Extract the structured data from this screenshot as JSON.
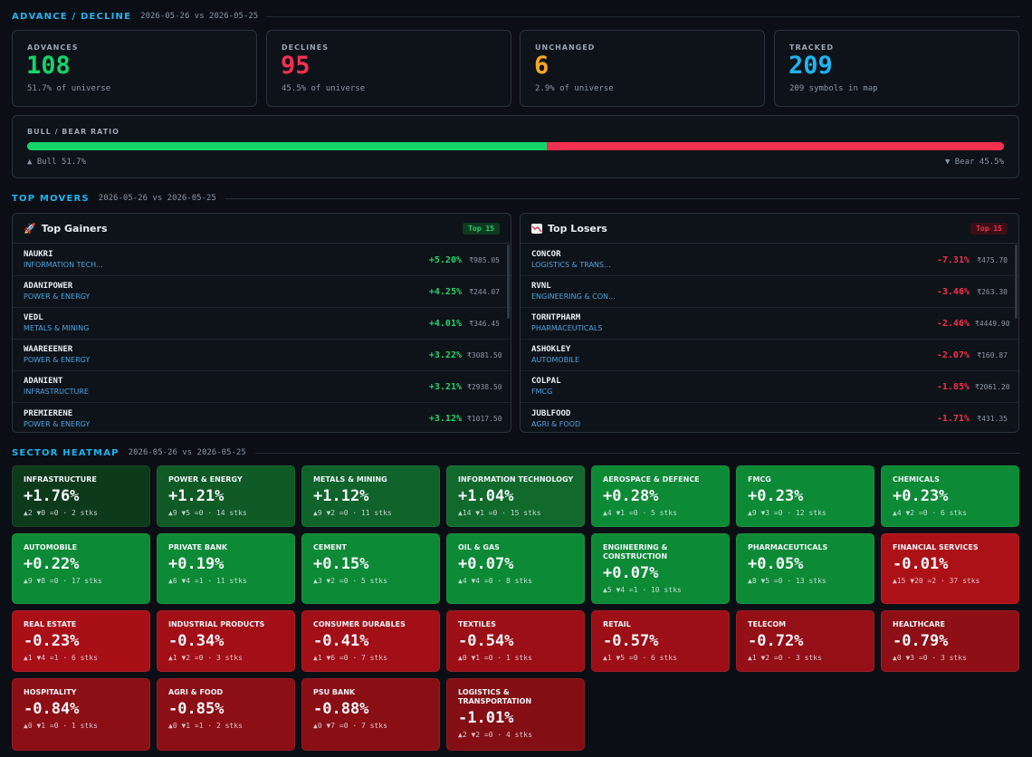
{
  "advance_decline": {
    "title": "ADVANCE / DECLINE",
    "dates": "2026-05-26 vs 2026-05-25",
    "stats": [
      {
        "label": "ADVANCES",
        "value": "108",
        "sub": "51.7% of universe",
        "color": "#14d46a"
      },
      {
        "label": "DECLINES",
        "value": "95",
        "sub": "45.5% of universe",
        "color": "#f4304f"
      },
      {
        "label": "UNCHANGED",
        "value": "6",
        "sub": "2.9% of universe",
        "color": "#f5a623"
      },
      {
        "label": "TRACKED",
        "value": "209",
        "sub": "209 symbols in map",
        "color": "#1fb4f0"
      }
    ],
    "ratio": {
      "label": "BULL / BEAR RATIO",
      "bull_pct": 51.7,
      "bear_pct": 45.5,
      "bull_label": "▲ Bull 51.7%",
      "bear_label": "▼ Bear 45.5%"
    }
  },
  "top_movers": {
    "title": "TOP MOVERS",
    "dates": "2026-05-26 vs 2026-05-25",
    "gainers": {
      "icon": "rocket-icon",
      "title": "Top Gainers",
      "badge": "Top 15",
      "rows": [
        {
          "symbol": "NAUKRI",
          "sector": "INFORMATION TECH...",
          "change": "+5.20%",
          "price": "₹985.05"
        },
        {
          "symbol": "ADANIPOWER",
          "sector": "POWER & ENERGY",
          "change": "+4.25%",
          "price": "₹244.07"
        },
        {
          "symbol": "VEDL",
          "sector": "METALS & MINING",
          "change": "+4.01%",
          "price": "₹346.45"
        },
        {
          "symbol": "WAAREEENER",
          "sector": "POWER & ENERGY",
          "change": "+3.22%",
          "price": "₹3081.50"
        },
        {
          "symbol": "ADANIENT",
          "sector": "INFRASTRUCTURE",
          "change": "+3.21%",
          "price": "₹2938.50"
        },
        {
          "symbol": "PREMIERENE",
          "sector": "POWER & ENERGY",
          "change": "+3.12%",
          "price": "₹1017.50"
        }
      ]
    },
    "losers": {
      "icon": "chart-down-icon",
      "title": "Top Losers",
      "badge": "Top 15",
      "rows": [
        {
          "symbol": "CONCOR",
          "sector": "LOGISTICS & TRANS...",
          "change": "-7.31%",
          "price": "₹475.70"
        },
        {
          "symbol": "RVNL",
          "sector": "ENGINEERING & CON...",
          "change": "-3.46%",
          "price": "₹263.30"
        },
        {
          "symbol": "TORNTPHARM",
          "sector": "PHARMACEUTICALS",
          "change": "-2.46%",
          "price": "₹4449.90"
        },
        {
          "symbol": "ASHOKLEY",
          "sector": "AUTOMOBILE",
          "change": "-2.07%",
          "price": "₹160.87"
        },
        {
          "symbol": "COLPAL",
          "sector": "FMCG",
          "change": "-1.85%",
          "price": "₹2061.20"
        },
        {
          "symbol": "JUBLFOOD",
          "sector": "AGRI & FOOD",
          "change": "-1.71%",
          "price": "₹431.35"
        }
      ]
    }
  },
  "heatmap": {
    "title": "SECTOR HEATMAP",
    "dates": "2026-05-26 vs 2026-05-25",
    "tiles": [
      {
        "name": "INFRASTRUCTURE",
        "pct": "+1.76%",
        "meta": "▲2 ▼0 =0 · 2 stks",
        "color": "#0e3a1c",
        "lines": 1
      },
      {
        "name": "POWER & ENERGY",
        "pct": "+1.21%",
        "meta": "▲9 ▼5 =0 · 14 stks",
        "color": "#0f5a25",
        "lines": 1
      },
      {
        "name": "METALS & MINING",
        "pct": "+1.12%",
        "meta": "▲9 ▼2 =0 · 11 stks",
        "color": "#10632a",
        "lines": 1
      },
      {
        "name": "INFORMATION TECHNOLOGY",
        "pct": "+1.04%",
        "meta": "▲14 ▼1 =0 · 15 stks",
        "color": "#116a2c",
        "lines": 1
      },
      {
        "name": "AEROSPACE & DEFENCE",
        "pct": "+0.28%",
        "meta": "▲4 ▼1 =0 · 5 stks",
        "color": "#0d8a35",
        "lines": 1
      },
      {
        "name": "FMCG",
        "pct": "+0.23%",
        "meta": "▲9 ▼3 =0 · 12 stks",
        "color": "#0d8a35",
        "lines": 1
      },
      {
        "name": "CHEMICALS",
        "pct": "+0.23%",
        "meta": "▲4 ▼2 =0 · 6 stks",
        "color": "#0d8a35",
        "lines": 1
      },
      {
        "name": "AUTOMOBILE",
        "pct": "+0.22%",
        "meta": "▲9 ▼8 =0 · 17 stks",
        "color": "#0d8a35",
        "lines": 1
      },
      {
        "name": "PRIVATE BANK",
        "pct": "+0.19%",
        "meta": "▲6 ▼4 =1 · 11 stks",
        "color": "#0d8a35",
        "lines": 1
      },
      {
        "name": "CEMENT",
        "pct": "+0.15%",
        "meta": "▲3 ▼2 =0 · 5 stks",
        "color": "#0d8a35",
        "lines": 1
      },
      {
        "name": "OIL & GAS",
        "pct": "+0.07%",
        "meta": "▲4 ▼4 =0 · 8 stks",
        "color": "#0d8a35",
        "lines": 1
      },
      {
        "name": "ENGINEERING & CONSTRUCTION",
        "pct": "+0.07%",
        "meta": "▲5 ▼4 =1 · 10 stks",
        "color": "#0d8a35",
        "lines": 2
      },
      {
        "name": "PHARMACEUTICALS",
        "pct": "+0.05%",
        "meta": "▲8 ▼5 =0 · 13 stks",
        "color": "#0d8a35",
        "lines": 1
      },
      {
        "name": "FINANCIAL SERVICES",
        "pct": "-0.01%",
        "meta": "▲15 ▼20 =2 · 37 stks",
        "color": "#ad1118",
        "lines": 1
      },
      {
        "name": "REAL ESTATE",
        "pct": "-0.23%",
        "meta": "▲1 ▼4 =1 · 6 stks",
        "color": "#a90f17",
        "lines": 1
      },
      {
        "name": "INDUSTRIAL PRODUCTS",
        "pct": "-0.34%",
        "meta": "▲1 ▼2 =0 · 3 stks",
        "color": "#a30f17",
        "lines": 1
      },
      {
        "name": "CONSUMER DURABLES",
        "pct": "-0.41%",
        "meta": "▲1 ▼6 =0 · 7 stks",
        "color": "#a30f17",
        "lines": 1
      },
      {
        "name": "TEXTILES",
        "pct": "-0.54%",
        "meta": "▲0 ▼1 =0 · 1 stks",
        "color": "#9c0f16",
        "lines": 1
      },
      {
        "name": "RETAIL",
        "pct": "-0.57%",
        "meta": "▲1 ▼5 =0 · 6 stks",
        "color": "#9c0f16",
        "lines": 1
      },
      {
        "name": "TELECOM",
        "pct": "-0.72%",
        "meta": "▲1 ▼2 =0 · 3 stks",
        "color": "#940f16",
        "lines": 1
      },
      {
        "name": "HEALTHCARE",
        "pct": "-0.79%",
        "meta": "▲0 ▼3 =0 · 3 stks",
        "color": "#8e0f15",
        "lines": 1
      },
      {
        "name": "HOSPITALITY",
        "pct": "-0.84%",
        "meta": "▲0 ▼1 =0 · 1 stks",
        "color": "#8c0f15",
        "lines": 1
      },
      {
        "name": "AGRI & FOOD",
        "pct": "-0.85%",
        "meta": "▲0 ▼1 =1 · 2 stks",
        "color": "#8c0f15",
        "lines": 1
      },
      {
        "name": "PSU BANK",
        "pct": "-0.88%",
        "meta": "▲0 ▼7 =0 · 7 stks",
        "color": "#8a0f15",
        "lines": 1
      },
      {
        "name": "LOGISTICS & TRANSPORTATION",
        "pct": "-1.01%",
        "meta": "▲2 ▼2 =0 · 4 stks",
        "color": "#830f14",
        "lines": 2
      }
    ]
  }
}
